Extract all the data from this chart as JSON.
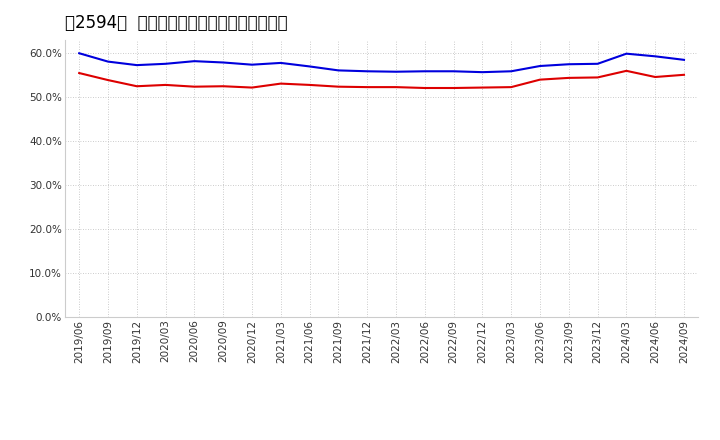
{
  "title": "［2594］  固定比率、固定長期適合率の推移",
  "background_color": "#ffffff",
  "plot_bg_color": "#ffffff",
  "grid_color": "#bbbbbb",
  "ylim": [
    0.0,
    0.63
  ],
  "yticks": [
    0.0,
    0.1,
    0.2,
    0.3,
    0.4,
    0.5,
    0.6
  ],
  "ytick_labels": [
    "0.0%",
    "10.0%",
    "20.0%",
    "30.0%",
    "40.0%",
    "50.0%",
    "60.0%"
  ],
  "x_labels": [
    "2019/06",
    "2019/09",
    "2019/12",
    "2020/03",
    "2020/06",
    "2020/09",
    "2020/12",
    "2021/03",
    "2021/06",
    "2021/09",
    "2021/12",
    "2022/03",
    "2022/06",
    "2022/09",
    "2022/12",
    "2023/03",
    "2023/06",
    "2023/09",
    "2023/12",
    "2024/03",
    "2024/06",
    "2024/09"
  ],
  "blue_line": {
    "label": "固定比率",
    "color": "#0000dd",
    "values": [
      0.599,
      0.58,
      0.572,
      0.575,
      0.581,
      0.578,
      0.573,
      0.577,
      0.569,
      0.56,
      0.558,
      0.557,
      0.558,
      0.558,
      0.556,
      0.558,
      0.57,
      0.574,
      0.575,
      0.598,
      0.592,
      0.584
    ]
  },
  "red_line": {
    "label": "固定長期適合率",
    "color": "#dd0000",
    "values": [
      0.554,
      0.538,
      0.524,
      0.527,
      0.523,
      0.524,
      0.521,
      0.53,
      0.527,
      0.523,
      0.522,
      0.522,
      0.52,
      0.52,
      0.521,
      0.522,
      0.539,
      0.543,
      0.544,
      0.559,
      0.545,
      0.55
    ]
  },
  "legend_colors": [
    "#0000dd",
    "#dd0000"
  ],
  "title_fontsize": 12,
  "tick_fontsize": 7.5,
  "legend_fontsize": 9,
  "line_width": 1.5
}
